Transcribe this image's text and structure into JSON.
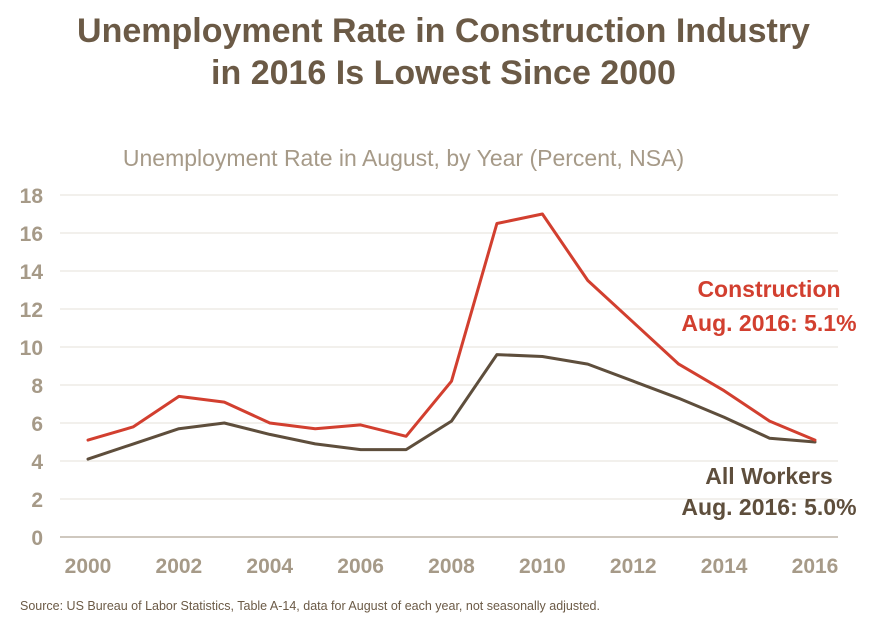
{
  "title_lines": [
    "Unemployment Rate in Construction Industry",
    "in 2016 Is Lowest Since 2000"
  ],
  "source": "Source: US Bureau of Labor Statistics, Table A-14, data for August of each year, not seasonally adjusted.",
  "chart_data": {
    "type": "line",
    "title": "Unemployment Rate in August, by Year (Percent, NSA)",
    "xlabel": "",
    "ylabel": "",
    "x": [
      2000,
      2001,
      2002,
      2003,
      2004,
      2005,
      2006,
      2007,
      2008,
      2009,
      2010,
      2011,
      2012,
      2013,
      2014,
      2015,
      2016
    ],
    "xticks": [
      "2000",
      "2002",
      "2004",
      "2006",
      "2008",
      "2010",
      "2012",
      "2014",
      "2016"
    ],
    "yticks": [
      "0",
      "2",
      "4",
      "6",
      "8",
      "10",
      "12",
      "14",
      "16",
      "18"
    ],
    "xlim": [
      2000,
      2016
    ],
    "ylim": [
      0,
      18
    ],
    "grid": true,
    "series": [
      {
        "name": "Construction",
        "color": "#d23f2f",
        "values": [
          5.1,
          5.8,
          7.4,
          7.1,
          6.0,
          5.7,
          5.9,
          5.3,
          8.2,
          16.5,
          17.0,
          13.5,
          11.3,
          9.1,
          7.7,
          6.1,
          5.1
        ],
        "annotation": [
          "Construction",
          "Aug. 2016: 5.1%"
        ]
      },
      {
        "name": "All Workers",
        "color": "#5e4e3c",
        "values": [
          4.1,
          4.9,
          5.7,
          6.0,
          5.4,
          4.9,
          4.6,
          4.6,
          6.1,
          9.6,
          9.5,
          9.1,
          8.2,
          7.3,
          6.3,
          5.2,
          5.0
        ],
        "annotation": [
          "All Workers",
          "Aug. 2016: 5.0%"
        ]
      }
    ],
    "colors": {
      "grid": "#e6e1da",
      "axis": "#bfb6aa",
      "tick_label": "#a69a88"
    }
  }
}
